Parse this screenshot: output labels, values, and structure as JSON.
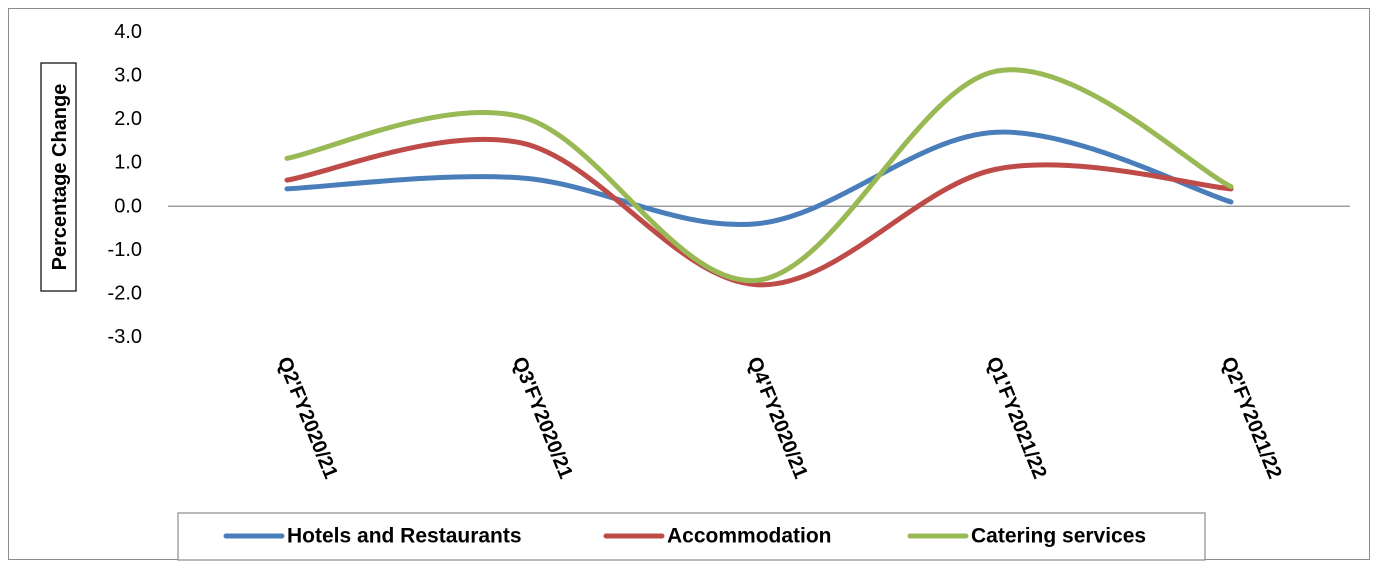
{
  "chart_data": {
    "type": "line",
    "smooth": true,
    "categories": [
      "Q2'FY2020/21",
      "Q3'FY2020/21",
      "Q4'FY2020/21",
      "Q1'FY2021/22",
      "Q2'FY2021/22"
    ],
    "series": [
      {
        "name": "Hotels and Restaurants",
        "color": "#4a7ebb",
        "values": [
          0.4,
          0.65,
          -0.4,
          1.7,
          0.1
        ]
      },
      {
        "name": "Accommodation",
        "color": "#be4b48",
        "values": [
          0.6,
          1.45,
          -1.8,
          0.85,
          0.4
        ]
      },
      {
        "name": "Catering services",
        "color": "#98b954",
        "values": [
          1.1,
          2.05,
          -1.7,
          3.1,
          0.45
        ]
      }
    ],
    "ylabel": "Percentage Change",
    "xlabel": "",
    "ylim": [
      -3.0,
      4.0
    ],
    "yticks": [
      "4.0",
      "3.0",
      "2.0",
      "1.0",
      "0.0",
      "-1.0",
      "-2.0",
      "-3.0"
    ],
    "grid": false,
    "legend_position": "bottom"
  }
}
